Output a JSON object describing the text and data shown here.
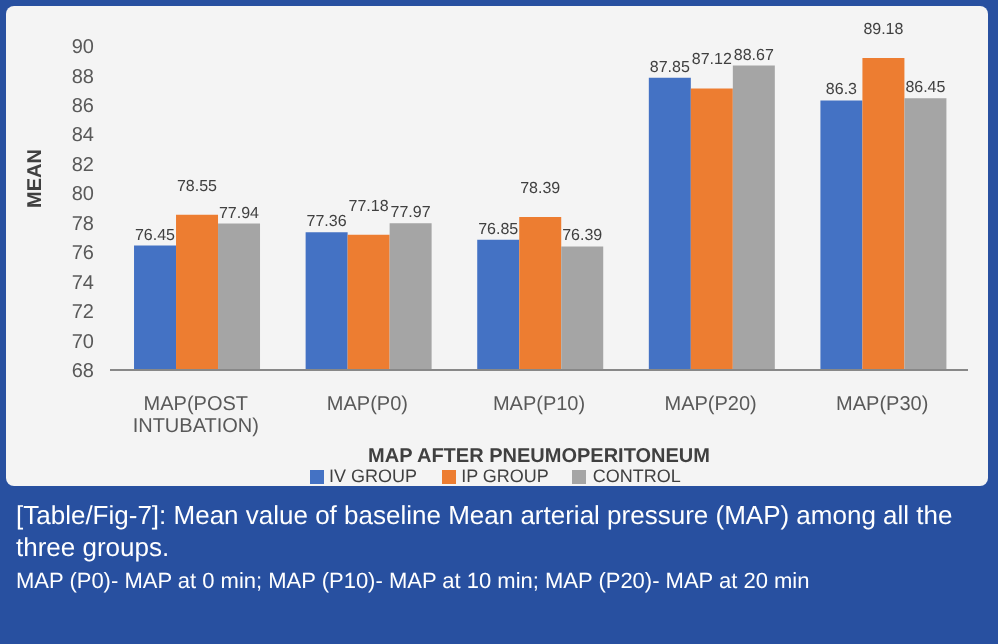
{
  "chart_data": {
    "type": "bar",
    "xlabel": "MAP AFTER PNEUMOPERITONEUM",
    "ylabel": "MEAN",
    "categories": [
      "MAP(POST INTUBATION)",
      "MAP(P0)",
      "MAP(P10)",
      "MAP(P20)",
      "MAP(P30)"
    ],
    "series": [
      {
        "name": "IV GROUP",
        "color": "#4472c4",
        "values": [
          76.45,
          77.36,
          76.85,
          87.85,
          86.3
        ],
        "value_labels": [
          "76.45",
          "77.36",
          "76.85",
          "87.85",
          "86.3"
        ]
      },
      {
        "name": "IP GROUP",
        "color": "#ed7d31",
        "values": [
          78.55,
          77.18,
          78.39,
          87.12,
          89.18
        ],
        "value_labels": [
          "78.55",
          "77.18",
          "78.39",
          "87.12",
          "89.18"
        ]
      },
      {
        "name": "CONTROL",
        "color": "#a5a5a5",
        "values": [
          77.94,
          77.97,
          76.39,
          88.67,
          86.45
        ],
        "value_labels": [
          "77.94",
          "77.97",
          "76.39",
          "88.67",
          "86.45"
        ]
      }
    ],
    "ylim": [
      68,
      90
    ],
    "yticks": [
      68,
      70,
      72,
      74,
      76,
      78,
      80,
      82,
      84,
      86,
      88,
      90
    ],
    "grid": false,
    "legend": "bottom",
    "annotations": [
      "[Table/Fig-7]: Mean value of baseline Mean arterial pressure (MAP) among all the three groups.",
      "MAP (P0)- MAP at 0 min; MAP (P10)- MAP at 10 min; MAP (P20)- MAP at 20 min"
    ]
  }
}
